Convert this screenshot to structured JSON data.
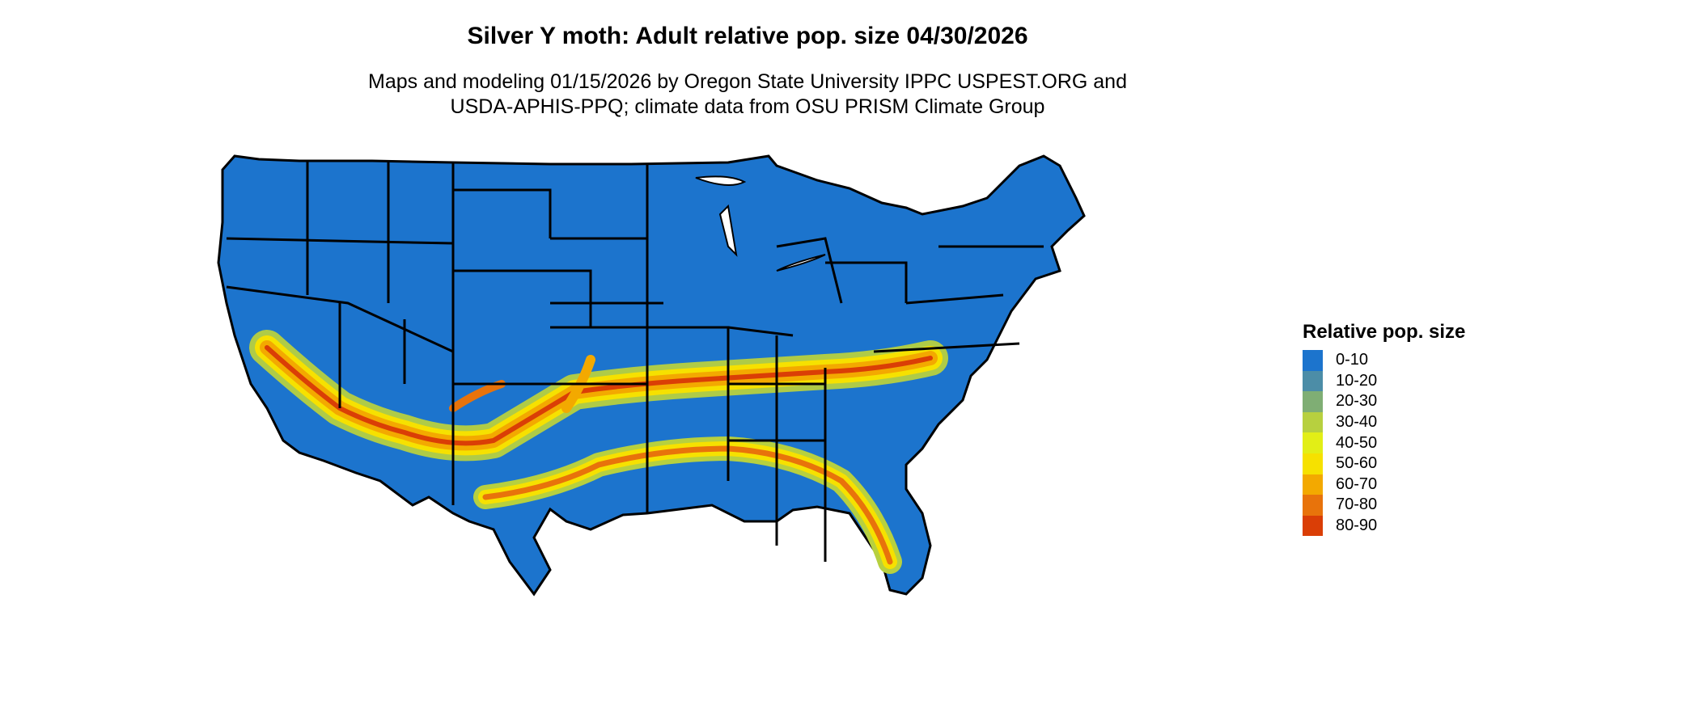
{
  "title": "Silver Y moth: Adult relative pop. size 04/30/2026",
  "subtitle_line1": "Maps and modeling 01/15/2026 by Oregon State University IPPC USPEST.ORG and",
  "subtitle_line2": "USDA-APHIS-PPQ; climate data from OSU PRISM Climate Group",
  "legend": {
    "title": "Relative pop. size",
    "items": [
      {
        "label": "0-10",
        "color": "#1c74cd"
      },
      {
        "label": "10-20",
        "color": "#4c8da7"
      },
      {
        "label": "20-30",
        "color": "#7fae74"
      },
      {
        "label": "30-40",
        "color": "#b7d03f"
      },
      {
        "label": "40-50",
        "color": "#e2ee16"
      },
      {
        "label": "50-60",
        "color": "#f6e100"
      },
      {
        "label": "60-70",
        "color": "#f3a900"
      },
      {
        "label": "70-80",
        "color": "#e8730b"
      },
      {
        "label": "80-90",
        "color": "#da3e06"
      }
    ]
  }
}
